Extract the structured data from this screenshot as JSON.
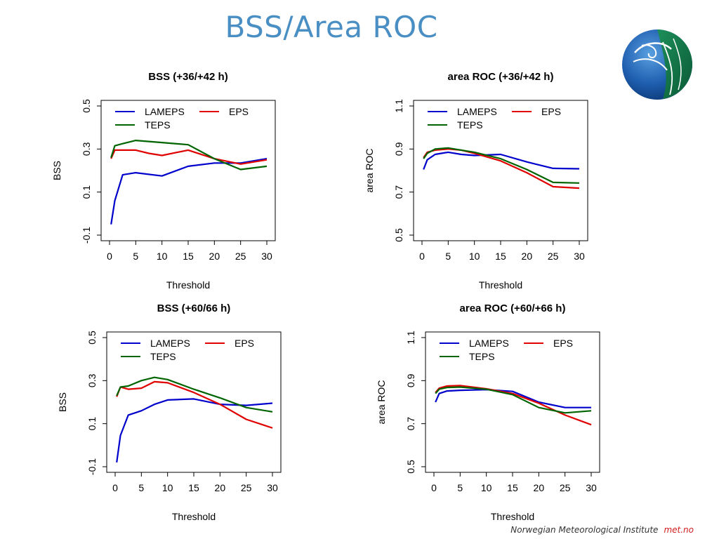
{
  "slide": {
    "title": "BSS/Area ROC",
    "footer_org": "Norwegian Meteorological Institute",
    "footer_site": "met.no"
  },
  "chart_data": [
    {
      "type": "line",
      "title": "BSS (+36/+42 h)",
      "xlabel": "Threshold",
      "ylabel": "BSS",
      "xlim": [
        0,
        30
      ],
      "ylim": [
        -0.1,
        0.5
      ],
      "xticks": [
        0,
        5,
        10,
        15,
        20,
        25,
        30
      ],
      "yticks": [
        -0.1,
        0.1,
        0.3,
        0.5
      ],
      "ytick_labels": [
        "-0.1",
        "0.1",
        "0.3",
        "0.5"
      ],
      "legend": [
        "LAMEPS",
        "EPS",
        "TEPS"
      ],
      "legend_placement": "top-left",
      "series": [
        {
          "name": "LAMEPS",
          "color": "#0000cc",
          "x": [
            0.3,
            1,
            2.5,
            5,
            10,
            15,
            20,
            25,
            30
          ],
          "y": [
            -0.05,
            0.06,
            0.18,
            0.19,
            0.175,
            0.22,
            0.235,
            0.235,
            0.255
          ]
        },
        {
          "name": "EPS",
          "color": "#e00000",
          "x": [
            0.3,
            1,
            2.5,
            5,
            7.5,
            10,
            15,
            20,
            25,
            30
          ],
          "y": [
            0.255,
            0.295,
            0.295,
            0.295,
            0.28,
            0.27,
            0.295,
            0.255,
            0.23,
            0.25
          ]
        },
        {
          "name": "TEPS",
          "color": "#006400",
          "x": [
            0.3,
            1,
            2.5,
            5,
            7.5,
            10,
            15,
            20,
            25,
            30
          ],
          "y": [
            0.26,
            0.315,
            0.325,
            0.34,
            0.335,
            0.33,
            0.32,
            0.255,
            0.205,
            0.22
          ]
        }
      ]
    },
    {
      "type": "line",
      "title": "area ROC (+36/+42 h)",
      "xlabel": "Threshold",
      "ylabel": "area ROC",
      "xlim": [
        0,
        30
      ],
      "ylim": [
        0.5,
        1.1
      ],
      "xticks": [
        0,
        5,
        10,
        15,
        20,
        25,
        30
      ],
      "yticks": [
        0.5,
        0.7,
        0.9,
        1.1
      ],
      "ytick_labels": [
        "0.5",
        "0.7",
        "0.9",
        "1.1"
      ],
      "legend": [
        "LAMEPS",
        "EPS",
        "TEPS"
      ],
      "legend_placement": "top-left",
      "series": [
        {
          "name": "LAMEPS",
          "color": "#0000cc",
          "x": [
            0.3,
            1,
            2.5,
            5,
            7.5,
            10,
            15,
            20,
            25,
            30
          ],
          "y": [
            0.805,
            0.85,
            0.875,
            0.885,
            0.875,
            0.87,
            0.875,
            0.84,
            0.81,
            0.808
          ]
        },
        {
          "name": "EPS",
          "color": "#e00000",
          "x": [
            0.3,
            1,
            2.5,
            5,
            7.5,
            10,
            15,
            20,
            25,
            30
          ],
          "y": [
            0.86,
            0.885,
            0.895,
            0.9,
            0.895,
            0.88,
            0.845,
            0.79,
            0.725,
            0.718
          ]
        },
        {
          "name": "TEPS",
          "color": "#006400",
          "x": [
            0.3,
            1,
            2.5,
            5,
            7.5,
            10,
            15,
            20,
            25,
            30
          ],
          "y": [
            0.855,
            0.88,
            0.9,
            0.905,
            0.895,
            0.885,
            0.855,
            0.805,
            0.745,
            0.742
          ]
        }
      ]
    },
    {
      "type": "line",
      "title": "BSS (+60/66 h)",
      "xlabel": "Threshold",
      "ylabel": "BSS",
      "xlim": [
        0,
        30
      ],
      "ylim": [
        -0.1,
        0.5
      ],
      "xticks": [
        0,
        5,
        10,
        15,
        20,
        25,
        30
      ],
      "yticks": [
        -0.1,
        0.1,
        0.3,
        0.5
      ],
      "ytick_labels": [
        "-0.1",
        "0.1",
        "0.3",
        "0.5"
      ],
      "legend": [
        "LAMEPS",
        "EPS",
        "TEPS"
      ],
      "legend_placement": "top-left",
      "series": [
        {
          "name": "LAMEPS",
          "color": "#0000cc",
          "x": [
            0.3,
            1,
            2.5,
            5,
            7.5,
            10,
            15,
            20,
            25,
            30
          ],
          "y": [
            -0.08,
            0.045,
            0.14,
            0.16,
            0.19,
            0.21,
            0.215,
            0.19,
            0.185,
            0.195
          ]
        },
        {
          "name": "EPS",
          "color": "#e00000",
          "x": [
            0.3,
            1,
            2.5,
            5,
            7.5,
            10,
            15,
            20,
            25,
            30
          ],
          "y": [
            0.225,
            0.27,
            0.26,
            0.265,
            0.295,
            0.29,
            0.245,
            0.19,
            0.12,
            0.08
          ]
        },
        {
          "name": "TEPS",
          "color": "#006400",
          "x": [
            0.3,
            1,
            2.5,
            5,
            7.5,
            10,
            15,
            20,
            25,
            30
          ],
          "y": [
            0.23,
            0.27,
            0.275,
            0.3,
            0.315,
            0.305,
            0.26,
            0.22,
            0.175,
            0.155
          ]
        }
      ]
    },
    {
      "type": "line",
      "title": "area ROC (+60/+66 h)",
      "xlabel": "Threshold",
      "ylabel": "area ROC",
      "xlim": [
        0,
        30
      ],
      "ylim": [
        0.5,
        1.1
      ],
      "xticks": [
        0,
        5,
        10,
        15,
        20,
        25,
        30
      ],
      "yticks": [
        0.5,
        0.7,
        0.9,
        1.1
      ],
      "ytick_labels": [
        "0.5",
        "0.7",
        "0.9",
        "1.1"
      ],
      "legend": [
        "LAMEPS",
        "EPS",
        "TEPS"
      ],
      "legend_placement": "top-left",
      "series": [
        {
          "name": "LAMEPS",
          "color": "#0000cc",
          "x": [
            0.3,
            1,
            2.5,
            5,
            10,
            15,
            20,
            25,
            30
          ],
          "y": [
            0.8,
            0.84,
            0.852,
            0.855,
            0.858,
            0.85,
            0.8,
            0.775,
            0.775
          ]
        },
        {
          "name": "EPS",
          "color": "#e00000",
          "x": [
            0.3,
            1,
            2.5,
            5,
            10,
            15,
            20,
            25,
            30
          ],
          "y": [
            0.845,
            0.865,
            0.875,
            0.877,
            0.862,
            0.84,
            0.795,
            0.74,
            0.695
          ]
        },
        {
          "name": "TEPS",
          "color": "#006400",
          "x": [
            0.3,
            1,
            2.5,
            5,
            10,
            15,
            20,
            25,
            30
          ],
          "y": [
            0.84,
            0.86,
            0.868,
            0.87,
            0.86,
            0.835,
            0.775,
            0.75,
            0.76
          ]
        }
      ]
    }
  ]
}
